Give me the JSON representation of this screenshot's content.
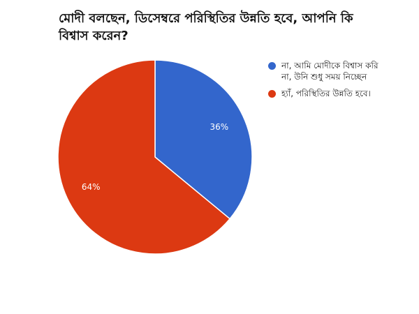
{
  "chart_data": {
    "type": "pie",
    "title": "মোদী বলছেন, ডিসেম্বরে পরিস্থিতির উন্নতি হবে, আপনি কি বিশ্বাস করেন?",
    "categories": [
      "না, আমি মোদীকে বিশ্বাস করি না, উনি শুধু সময় নিচ্ছেন",
      "হ্যাঁ, পরিস্থিতির উন্নতি হবে।"
    ],
    "values": [
      36,
      64
    ],
    "data_labels": [
      "36%",
      "64%"
    ],
    "colors": [
      "#3366cc",
      "#dc3912"
    ],
    "legend_position": "right"
  }
}
